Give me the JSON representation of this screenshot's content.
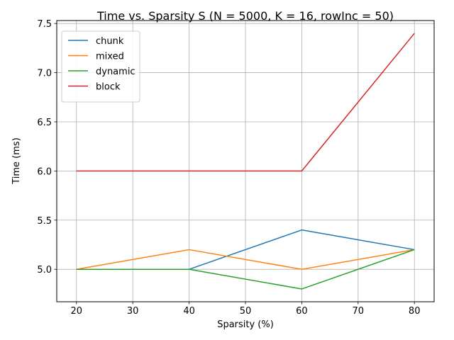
{
  "chart_data": {
    "type": "line",
    "title": "Time vs. Sparsity S (N = 5000, K = 16, rowInc = 50)",
    "xlabel": "Sparsity (%)",
    "ylabel": "Time (ms)",
    "x": [
      20,
      40,
      60,
      80
    ],
    "xlim": [
      16.5,
      83.5
    ],
    "ylim": [
      4.67,
      7.53
    ],
    "xticks": [
      20,
      30,
      40,
      50,
      60,
      70,
      80
    ],
    "yticks": [
      5.0,
      5.5,
      6.0,
      6.5,
      7.0,
      7.5
    ],
    "ytick_labels": [
      "5.0",
      "5.5",
      "6.0",
      "6.5",
      "7.0",
      "7.5"
    ],
    "grid": true,
    "legend_position": "upper-left",
    "series": [
      {
        "name": "chunk",
        "color": "#1f77b4",
        "values": [
          5.0,
          5.0,
          5.4,
          5.2
        ]
      },
      {
        "name": "mixed",
        "color": "#ff7f0e",
        "values": [
          5.0,
          5.2,
          5.0,
          5.2
        ]
      },
      {
        "name": "dynamic",
        "color": "#2ca02c",
        "values": [
          5.0,
          5.0,
          4.8,
          5.2
        ]
      },
      {
        "name": "block",
        "color": "#d62728",
        "values": [
          6.0,
          6.0,
          6.0,
          7.4
        ]
      }
    ]
  }
}
